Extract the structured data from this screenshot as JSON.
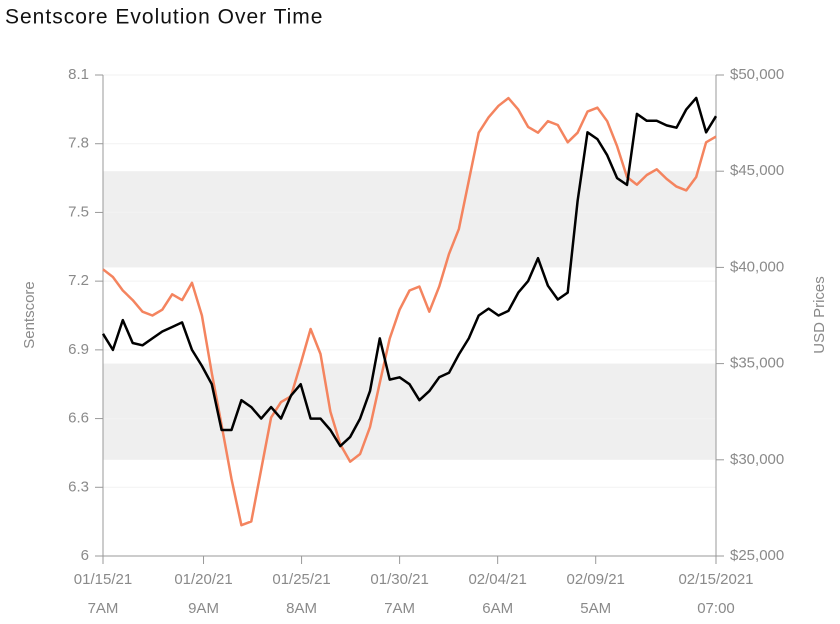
{
  "chart_data": {
    "type": "line",
    "title": "Sentscore Evolution Over Time",
    "ylabel": "Sentscore",
    "y2label": "USD Prices",
    "x": [
      "2021-01-15T07:00",
      "2021-01-15T19:00",
      "2021-01-16T07:00",
      "2021-01-16T19:00",
      "2021-01-17T07:00",
      "2021-01-17T19:00",
      "2021-01-18T07:00",
      "2021-01-18T19:00",
      "2021-01-19T07:00",
      "2021-01-19T19:00",
      "2021-01-20T07:00",
      "2021-01-20T19:00",
      "2021-01-21T07:00",
      "2021-01-21T19:00",
      "2021-01-22T07:00",
      "2021-01-22T19:00",
      "2021-01-23T07:00",
      "2021-01-23T19:00",
      "2021-01-24T07:00",
      "2021-01-24T19:00",
      "2021-01-25T07:00",
      "2021-01-25T19:00",
      "2021-01-26T07:00",
      "2021-01-26T19:00",
      "2021-01-27T07:00",
      "2021-01-27T19:00",
      "2021-01-28T07:00",
      "2021-01-28T19:00",
      "2021-01-29T07:00",
      "2021-01-29T19:00",
      "2021-01-30T07:00",
      "2021-01-30T19:00",
      "2021-01-31T07:00",
      "2021-01-31T19:00",
      "2021-02-01T07:00",
      "2021-02-01T19:00",
      "2021-02-02T07:00",
      "2021-02-02T19:00",
      "2021-02-03T07:00",
      "2021-02-03T19:00",
      "2021-02-04T07:00",
      "2021-02-04T19:00",
      "2021-02-05T07:00",
      "2021-02-05T19:00",
      "2021-02-06T07:00",
      "2021-02-06T19:00",
      "2021-02-07T07:00",
      "2021-02-07T19:00",
      "2021-02-08T07:00",
      "2021-02-08T19:00",
      "2021-02-09T07:00",
      "2021-02-09T19:00",
      "2021-02-10T07:00",
      "2021-02-10T19:00",
      "2021-02-11T07:00",
      "2021-02-11T19:00",
      "2021-02-12T07:00",
      "2021-02-12T19:00",
      "2021-02-13T07:00",
      "2021-02-13T19:00",
      "2021-02-14T07:00",
      "2021-02-14T19:00",
      "2021-02-15T07:00"
    ],
    "series": [
      {
        "color": "#000000",
        "values": [
          6.97,
          6.9,
          7.03,
          6.93,
          6.92,
          6.95,
          6.98,
          7.0,
          7.02,
          6.9,
          6.83,
          6.75,
          6.55,
          6.55,
          6.68,
          6.65,
          6.6,
          6.65,
          6.6,
          6.7,
          6.75,
          6.6,
          6.6,
          6.55,
          6.48,
          6.52,
          6.6,
          6.72,
          6.95,
          6.77,
          6.78,
          6.75,
          6.68,
          6.72,
          6.78,
          6.8,
          6.88,
          6.95,
          7.05,
          7.08,
          7.05,
          7.07,
          7.15,
          7.2,
          7.3,
          7.18,
          7.12,
          7.15,
          7.55,
          7.85,
          7.82,
          7.75,
          7.65,
          7.62,
          7.93,
          7.9,
          7.9,
          7.88,
          7.87,
          7.95,
          8.0,
          7.85,
          7.92
        ]
      },
      {
        "color": "#f4845f",
        "axis": "y2",
        "values": [
          39900,
          39500,
          38800,
          38300,
          37700,
          37500,
          37800,
          38600,
          38300,
          39200,
          37500,
          34500,
          31800,
          29000,
          26600,
          26800,
          29500,
          32200,
          33000,
          33300,
          35000,
          36800,
          35500,
          32500,
          30800,
          29900,
          30300,
          31700,
          34000,
          36300,
          37800,
          38800,
          39000,
          37700,
          39000,
          40700,
          42000,
          44500,
          47000,
          47800,
          48400,
          48800,
          48200,
          47300,
          47000,
          47600,
          47400,
          46500,
          47000,
          48100,
          48300,
          47600,
          46300,
          44700,
          44300,
          44800,
          45100,
          44600,
          44200,
          44000,
          44700,
          46500,
          46800
        ]
      }
    ],
    "xlim": [
      "2021-01-15T07:00",
      "2021-02-15T07:00"
    ],
    "xticks": [
      {
        "value": "2021-01-15T07:00",
        "label": [
          "01/15/21",
          "7AM"
        ]
      },
      {
        "value": "2021-01-20T09:00",
        "label": [
          "01/20/21",
          "9AM"
        ]
      },
      {
        "value": "2021-01-25T08:00",
        "label": [
          "01/25/21",
          "8AM"
        ]
      },
      {
        "value": "2021-01-30T07:00",
        "label": [
          "01/30/21",
          "7AM"
        ]
      },
      {
        "value": "2021-02-04T06:00",
        "label": [
          "02/04/21",
          "6AM"
        ]
      },
      {
        "value": "2021-02-09T05:00",
        "label": [
          "02/09/21",
          "5AM"
        ]
      },
      {
        "value": "2021-02-15T07:00",
        "label": [
          "02/15/2021",
          "07:00"
        ]
      }
    ],
    "ylim": [
      6,
      8.1
    ],
    "yticks": [
      6,
      6.3,
      6.6,
      6.9,
      7.2,
      7.5,
      7.8,
      8.1
    ],
    "y2lim": [
      25000,
      50000
    ],
    "y2ticks": [
      {
        "value": 25000,
        "label": "$25,000"
      },
      {
        "value": 30000,
        "label": "$30,000"
      },
      {
        "value": 35000,
        "label": "$35,000"
      },
      {
        "value": 40000,
        "label": "$40,000"
      },
      {
        "value": 45000,
        "label": "$45,000"
      },
      {
        "value": 50000,
        "label": "$50,000"
      }
    ],
    "grid": true
  }
}
